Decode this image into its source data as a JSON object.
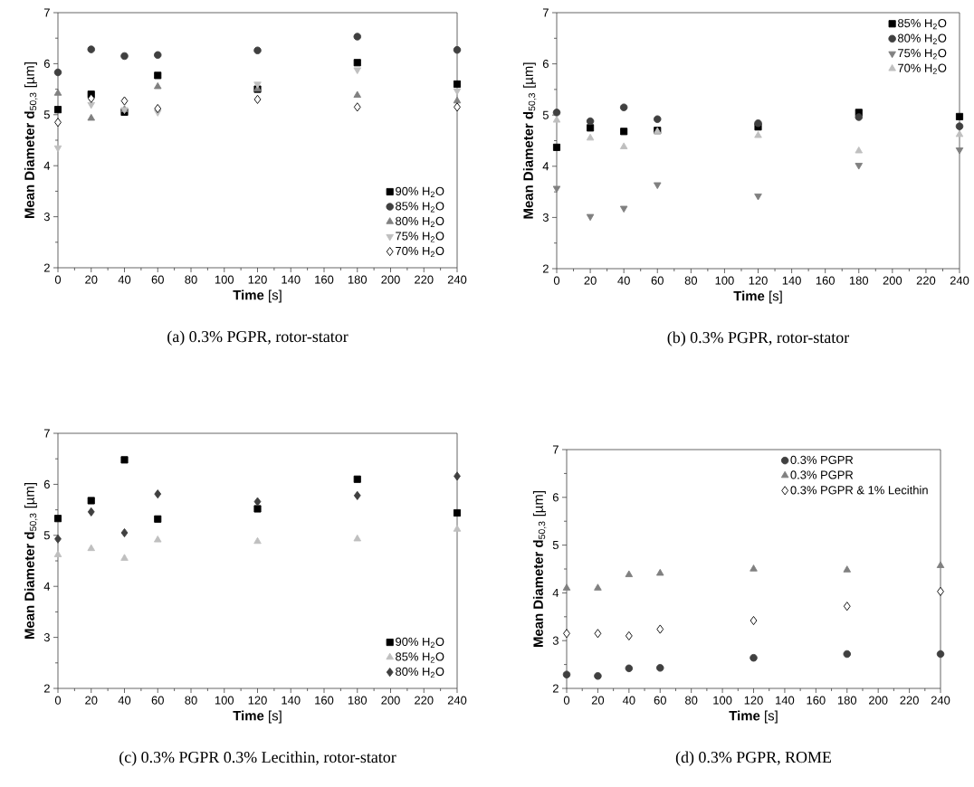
{
  "chart_data": [
    {
      "type": "scatter",
      "xlabel": "**Time** [s]",
      "ylabel": "**Mean Diameter d**$_{50,3}$ [µm]",
      "annotations": [
        "(a) 0.3% PGPR, rotor-stator"
      ],
      "x": [
        0,
        20,
        40,
        60,
        120,
        180,
        240
      ],
      "xlim": [
        0,
        240
      ],
      "xticks": [
        0,
        20,
        40,
        60,
        80,
        100,
        120,
        140,
        160,
        180,
        200,
        220,
        240
      ],
      "ylim": [
        2,
        7
      ],
      "yticks": [
        2,
        3,
        4,
        5,
        6,
        7
      ],
      "legend": "bottom right",
      "series": [
        {
          "name": "90% H$_{2}$O",
          "color": "#000000",
          "marker": "square",
          "values": [
            5.1,
            5.4,
            5.05,
            5.77,
            5.5,
            6.02,
            5.6
          ]
        },
        {
          "name": "85% H$_{2}$O",
          "color": "#404040",
          "marker": "circle",
          "values": [
            5.83,
            6.28,
            6.15,
            6.17,
            6.26,
            6.53,
            6.27
          ]
        },
        {
          "name": "80% H$_{2}$O",
          "color": "#808080",
          "marker": "triangle",
          "values": [
            5.42,
            4.93,
            5.1,
            5.55,
            5.5,
            5.38,
            5.27
          ]
        },
        {
          "name": "75% H$_{2}$O",
          "color": "#bfbfbf",
          "marker": "triangle-down",
          "values": [
            4.35,
            5.2,
            5.1,
            5.05,
            5.6,
            5.88,
            5.47
          ]
        },
        {
          "name": "70% H$_{2}$O",
          "color": "#ffffff",
          "marker": "diamond",
          "values": [
            4.85,
            5.32,
            5.27,
            5.12,
            5.3,
            5.15,
            5.15
          ]
        }
      ]
    },
    {
      "type": "scatter",
      "xlabel": "**Time** [s]",
      "ylabel": "**Mean Diameter d**$_{50,3}$ [µm]",
      "annotations": [
        "(b) 0.3% PGPR, rotor-stator"
      ],
      "x": [
        0,
        20,
        40,
        60,
        120,
        180,
        240
      ],
      "xlim": [
        0,
        240
      ],
      "xticks": [
        0,
        20,
        40,
        60,
        80,
        100,
        120,
        140,
        160,
        180,
        200,
        220,
        240
      ],
      "ylim": [
        2,
        7
      ],
      "yticks": [
        2,
        3,
        4,
        5,
        6,
        7
      ],
      "legend": "top right",
      "series": [
        {
          "name": "85% H$_{2}$O",
          "color": "#000000",
          "marker": "square",
          "values": [
            4.37,
            4.75,
            4.68,
            4.7,
            4.77,
            5.05,
            4.97
          ]
        },
        {
          "name": "80% H$_{2}$O",
          "color": "#404040",
          "marker": "circle",
          "values": [
            5.05,
            4.88,
            5.15,
            4.92,
            4.84,
            4.96,
            4.78
          ]
        },
        {
          "name": "75% H$_{2}$O",
          "color": "#808080",
          "marker": "triangle-down",
          "values": [
            3.57,
            3.02,
            3.18,
            3.64,
            3.42,
            4.02,
            4.32
          ]
        },
        {
          "name": "70% H$_{2}$O",
          "color": "#bfbfbf",
          "marker": "triangle",
          "values": [
            4.9,
            4.55,
            4.38,
            4.68,
            4.6,
            4.3,
            4.62
          ]
        }
      ]
    },
    {
      "type": "scatter",
      "xlabel": "**Time** [s]",
      "ylabel": "**Mean Diameter d**$_{50,3}$ [µm]",
      "annotations": [
        "(c) 0.3% PGPR  0.3% Lecithin, rotor-stator"
      ],
      "x": [
        0,
        20,
        40,
        60,
        120,
        180,
        240
      ],
      "xlim": [
        0,
        240
      ],
      "xticks": [
        0,
        20,
        40,
        60,
        80,
        100,
        120,
        140,
        160,
        180,
        200,
        220,
        240
      ],
      "ylim": [
        2,
        7
      ],
      "yticks": [
        2,
        3,
        4,
        5,
        6,
        7
      ],
      "legend": "bottom right",
      "series": [
        {
          "name": "90% H$_{2}$O",
          "color": "#000000",
          "marker": "square",
          "values": [
            5.33,
            5.68,
            6.48,
            5.32,
            5.52,
            6.1,
            5.44
          ]
        },
        {
          "name": "85% H$_{2}$O",
          "color": "#bfbfbf",
          "marker": "triangle",
          "values": [
            4.62,
            4.74,
            4.55,
            4.91,
            4.88,
            4.93,
            5.12
          ]
        },
        {
          "name": "80% H$_{2}$O",
          "color": "#404040",
          "marker": "diamond",
          "values": [
            4.93,
            5.46,
            5.05,
            5.81,
            5.66,
            5.78,
            6.16
          ]
        }
      ]
    },
    {
      "type": "scatter",
      "xlabel": "**Time** [s]",
      "ylabel": "**Mean Diameter d**$_{50,3}$ [µm]",
      "annotations": [
        "(d) 0.3% PGPR, ROME"
      ],
      "x": [
        0,
        20,
        40,
        60,
        120,
        180,
        240
      ],
      "xlim": [
        0,
        240
      ],
      "xticks": [
        0,
        20,
        40,
        60,
        80,
        100,
        120,
        140,
        160,
        180,
        200,
        220,
        240
      ],
      "ylim": [
        2,
        7
      ],
      "yticks": [
        2,
        3,
        4,
        5,
        6,
        7
      ],
      "legend": "top right",
      "series": [
        {
          "name": "0.3% PGPR",
          "color": "#404040",
          "marker": "circle",
          "values": [
            2.29,
            2.26,
            2.42,
            2.43,
            2.64,
            2.72,
            2.72
          ]
        },
        {
          "name": "0.3% PGPR",
          "color": "#808080",
          "marker": "triangle",
          "values": [
            4.1,
            4.1,
            4.38,
            4.41,
            4.5,
            4.48,
            4.57
          ]
        },
        {
          "name": "0.3% PGPR & 1% Lecithin",
          "color": "#ffffff",
          "marker": "diamond",
          "values": [
            3.15,
            3.15,
            3.1,
            3.24,
            3.42,
            3.72,
            4.03
          ]
        }
      ]
    }
  ]
}
